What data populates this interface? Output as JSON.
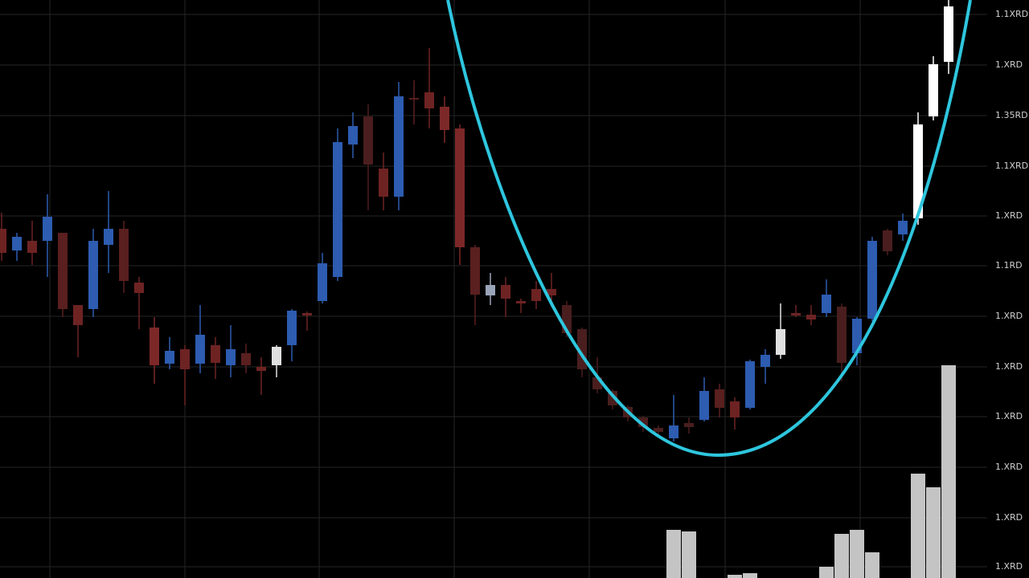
{
  "chart_data": {
    "type": "candlestick",
    "categories": [
      null,
      null,
      null,
      null,
      null,
      null,
      null,
      null,
      null,
      null,
      null,
      null,
      null,
      null,
      null,
      null,
      null,
      null,
      null,
      null,
      null,
      null,
      null,
      null,
      null,
      null,
      null,
      null,
      null,
      null,
      null,
      null,
      null,
      null,
      null,
      null,
      null,
      null,
      null,
      null,
      null,
      null,
      null,
      null,
      null,
      null,
      null,
      null,
      null,
      null,
      null,
      null,
      null,
      null,
      null,
      null,
      null,
      null,
      null,
      null,
      null,
      null,
      null
    ],
    "open": [
      4.35,
      4.08,
      4.2,
      4.2,
      4.3,
      3.4,
      3.35,
      4.15,
      4.35,
      3.68,
      3.12,
      2.67,
      2.85,
      2.67,
      2.9,
      2.65,
      2.8,
      2.63,
      2.65,
      2.9,
      3.3,
      3.45,
      3.75,
      5.4,
      5.75,
      5.1,
      4.75,
      5.98,
      6.05,
      5.87,
      5.6,
      4.12,
      3.52,
      3.65,
      3.45,
      3.6,
      3.6,
      3.4,
      3.1,
      2.5,
      2.33,
      2.13,
      2.0,
      1.87,
      1.74,
      1.93,
      1.97,
      2.35,
      2.2,
      2.12,
      2.63,
      2.78,
      3.3,
      3.28,
      3.3,
      3.38,
      2.8,
      3.23,
      4.33,
      4.28,
      4.48,
      5.75,
      6.43
    ],
    "high": [
      4.55,
      4.3,
      4.45,
      4.78,
      4.3,
      3.4,
      4.35,
      4.82,
      4.45,
      3.75,
      3.25,
      3.0,
      2.9,
      3.4,
      3.0,
      3.15,
      2.92,
      2.75,
      2.9,
      3.35,
      3.32,
      4.05,
      5.6,
      5.8,
      5.9,
      5.3,
      6.18,
      6.2,
      6.6,
      6.0,
      5.65,
      4.15,
      3.8,
      3.75,
      3.48,
      3.7,
      3.8,
      3.45,
      3.12,
      2.75,
      2.35,
      2.15,
      2.02,
      1.9,
      2.28,
      2.0,
      2.5,
      2.42,
      2.25,
      2.72,
      2.85,
      3.42,
      3.4,
      3.4,
      3.72,
      3.42,
      3.25,
      4.25,
      4.35,
      4.54,
      5.8,
      6.5,
      7.2
    ],
    "low": [
      3.95,
      3.95,
      3.9,
      3.75,
      3.25,
      2.75,
      3.25,
      3.8,
      3.55,
      3.1,
      2.42,
      2.6,
      2.15,
      2.55,
      2.48,
      2.5,
      2.55,
      2.28,
      2.5,
      2.7,
      3.08,
      3.42,
      3.7,
      5.23,
      4.58,
      4.58,
      4.58,
      5.65,
      5.6,
      5.42,
      3.9,
      3.15,
      3.4,
      3.25,
      3.3,
      3.35,
      3.38,
      3.0,
      2.5,
      2.3,
      2.1,
      1.95,
      1.82,
      1.78,
      1.7,
      1.8,
      1.95,
      2.0,
      1.85,
      2.1,
      2.42,
      2.73,
      3.25,
      3.15,
      3.25,
      2.45,
      2.65,
      3.2,
      4.02,
      4.2,
      4.4,
      5.7,
      6.28
    ],
    "close": [
      4.05,
      4.25,
      4.05,
      4.5,
      3.35,
      3.15,
      4.2,
      4.35,
      3.7,
      3.55,
      2.65,
      2.83,
      2.6,
      3.03,
      2.68,
      2.85,
      2.65,
      2.58,
      2.88,
      3.33,
      3.27,
      3.92,
      5.43,
      5.63,
      5.15,
      4.75,
      6.0,
      5.96,
      5.85,
      5.58,
      4.12,
      3.53,
      3.65,
      3.48,
      3.42,
      3.45,
      3.52,
      3.05,
      2.6,
      2.35,
      2.15,
      2.0,
      1.88,
      1.82,
      1.9,
      1.88,
      2.33,
      2.12,
      2.0,
      2.7,
      2.78,
      3.1,
      3.27,
      3.22,
      3.53,
      2.68,
      3.23,
      4.2,
      4.07,
      4.45,
      5.65,
      6.4,
      7.12
    ],
    "colors": [
      "#6e2323",
      "#2d5cb0",
      "#6e2323",
      "#2d5cb0",
      "#5a1f1f",
      "#6e2323",
      "#2d5cb0",
      "#2d5cb0",
      "#5a1f1f",
      "#6e2323",
      "#7d2828",
      "#2d5cb0",
      "#6e2323",
      "#2d5cb0",
      "#6e2323",
      "#2d5cb0",
      "#5a1f1f",
      "#6e2323",
      "#e0e0e0",
      "#2d5cb0",
      "#6e2323",
      "#2d5cb0",
      "#2d5cb0",
      "#2d5cb0",
      "#4a1e1e",
      "#6e2323",
      "#2d5cb0",
      "#5a1f1f",
      "#6e2323",
      "#7d2828",
      "#7d2828",
      "#5a1f1f",
      "#9aa4b8",
      "#6e2323",
      "#6e2323",
      "#6e2323",
      "#6e2323",
      "#4a1e1e",
      "#4a1e1e",
      "#4a1e1e",
      "#4a1e1e",
      "#4a1e1e",
      "#4a1e1e",
      "#4a1e1e",
      "#2d5cb0",
      "#4a1e1e",
      "#2d5cb0",
      "#5a1f1f",
      "#6e2323",
      "#2d5cb0",
      "#2d5cb0",
      "#e0e0e0",
      "#6e2323",
      "#6e2323",
      "#2d5cb0",
      "#4a1e1e",
      "#2d5cb0",
      "#2d5cb0",
      "#4a1e1e",
      "#2d5cb0",
      "#ffffff",
      "#ffffff",
      "#ffffff"
    ],
    "volume": [
      null,
      null,
      null,
      null,
      null,
      null,
      null,
      null,
      null,
      null,
      null,
      null,
      null,
      null,
      null,
      null,
      null,
      null,
      null,
      null,
      null,
      null,
      null,
      null,
      null,
      null,
      null,
      null,
      null,
      null,
      null,
      null,
      null,
      null,
      null,
      null,
      null,
      null,
      null,
      null,
      null,
      null,
      null,
      null,
      60,
      58,
      null,
      null,
      4,
      6,
      null,
      null,
      null,
      null,
      14,
      55,
      60,
      32,
      null,
      null,
      130,
      113,
      265
    ],
    "volume_color": "#c4c4c4",
    "volume_lim": [
      0,
      300
    ],
    "ylim": [
      0,
      7.2
    ],
    "yticks": [
      {
        "value": 7.02,
        "label": "1.1XRD"
      },
      {
        "value": 6.39,
        "label": "1.XRD"
      },
      {
        "value": 5.76,
        "label": "1.35RD"
      },
      {
        "value": 5.13,
        "label": "1.1XRD"
      },
      {
        "value": 4.51,
        "label": "1.XRD"
      },
      {
        "value": 3.89,
        "label": "1.1RD"
      },
      {
        "value": 3.26,
        "label": "1.XRD"
      },
      {
        "value": 2.63,
        "label": "1.XRD"
      },
      {
        "value": 2.01,
        "label": "1.XRD"
      },
      {
        "value": 1.38,
        "label": "1.XRD"
      },
      {
        "value": 0.75,
        "label": "1.XRD"
      },
      {
        "value": 0.14,
        "label": "1.XRD"
      }
    ],
    "grid": true
  }
}
